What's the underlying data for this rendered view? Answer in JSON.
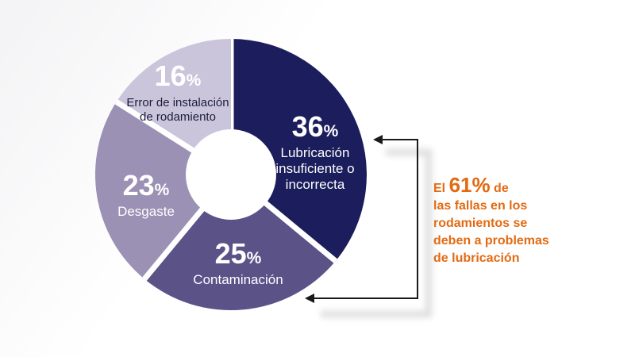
{
  "chart_data": {
    "type": "pie",
    "donut": true,
    "slices": [
      {
        "label": "Lubricación insuficiente o incorrecta",
        "label_lines": [
          "Lubricación",
          "insuficiente o",
          "incorrecta"
        ],
        "value": 36,
        "pct": "36",
        "color": "#1b1d5c"
      },
      {
        "label": "Contaminación",
        "label_lines": [
          "Contaminación"
        ],
        "value": 25,
        "pct": "25",
        "color": "#5b5288"
      },
      {
        "label": "Desgaste",
        "label_lines": [
          "Desgaste"
        ],
        "value": 23,
        "pct": "23",
        "color": "#9a91b5"
      },
      {
        "label": "Error de instalación de rodamiento",
        "label_lines": [
          "Error de instalación",
          "de rodamiento"
        ],
        "value": 16,
        "pct": "16",
        "color": "#cbc5dc"
      }
    ],
    "percent_sign": "%"
  },
  "callout": {
    "prefix": "El ",
    "highlight": "61%",
    "suffix": " de",
    "lines": [
      "las fallas en los",
      "rodamientos se",
      "deben a problemas",
      "de lubricación"
    ],
    "color": "#e36a12"
  },
  "arrow_color": "#1a1a1a"
}
